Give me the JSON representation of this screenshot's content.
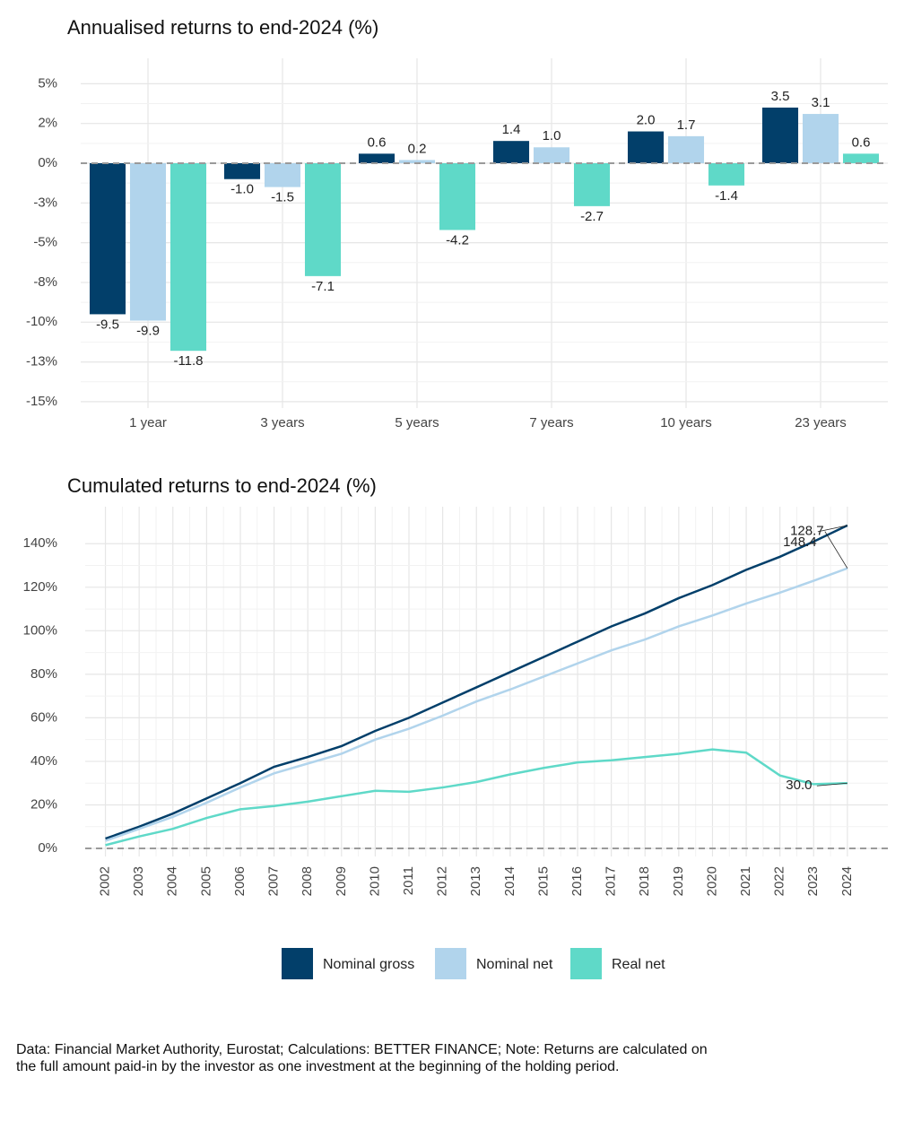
{
  "chart_data": [
    {
      "type": "bar",
      "title": "Annualised returns to end-2024 (%)",
      "categories": [
        "1 year",
        "3 years",
        "5 years",
        "7 years",
        "10 years",
        "23 years"
      ],
      "series": [
        {
          "name": "Nominal gross",
          "color": "#023f6a",
          "values": [
            -9.5,
            -1.0,
            0.6,
            1.4,
            2.0,
            3.5
          ],
          "value_labels": [
            "-9.5",
            "-1.0",
            "0.6",
            "1.4",
            "2.0",
            "3.5"
          ]
        },
        {
          "name": "Nominal net",
          "color": "#b1d4ec",
          "values": [
            -9.9,
            -1.5,
            0.2,
            1.0,
            1.7,
            3.1
          ],
          "value_labels": [
            "-9.9",
            "-1.5",
            "0.2",
            "1.0",
            "1.7",
            "3.1"
          ]
        },
        {
          "name": "Real net",
          "color": "#5fd9c8",
          "values": [
            -11.8,
            -7.1,
            -4.2,
            -2.7,
            -1.4,
            0.6
          ],
          "value_labels": [
            "-11.8",
            "-7.1",
            "-4.2",
            "-2.7",
            "-1.4",
            "0.6"
          ]
        }
      ],
      "ylim": [
        -15.4,
        6.6
      ],
      "yticks": [
        {
          "value": 5,
          "label": "5%"
        },
        {
          "value": 2.5,
          "label": "2%"
        },
        {
          "value": 0,
          "label": "0%"
        },
        {
          "value": -2.5,
          "label": "-3%"
        },
        {
          "value": -5,
          "label": "-5%"
        },
        {
          "value": -7.5,
          "label": "-8%"
        },
        {
          "value": -10,
          "label": "-10%"
        },
        {
          "value": -12.5,
          "label": "-13%"
        },
        {
          "value": -15,
          "label": "-15%"
        }
      ],
      "grid": true
    },
    {
      "type": "line",
      "title": "Cumulated returns to end-2024 (%)",
      "x": [
        2002,
        2003,
        2004,
        2005,
        2006,
        2007,
        2008,
        2009,
        2010,
        2011,
        2012,
        2013,
        2014,
        2015,
        2016,
        2017,
        2018,
        2019,
        2020,
        2021,
        2022,
        2023,
        2024
      ],
      "series": [
        {
          "name": "Nominal gross",
          "color": "#023f6a",
          "values": [
            4.5,
            10,
            16,
            23,
            30,
            37.5,
            42,
            47,
            54,
            60,
            67,
            74,
            81,
            88,
            95,
            102,
            108,
            115,
            121,
            128,
            134,
            141,
            148.4
          ]
        },
        {
          "name": "Nominal net",
          "color": "#b1d4ec",
          "values": [
            3.5,
            9,
            14.5,
            21,
            28,
            34.5,
            39,
            43.5,
            50,
            55,
            61,
            67.5,
            73,
            79,
            85,
            91,
            96,
            102,
            107,
            112.5,
            117.5,
            123,
            128.7
          ]
        },
        {
          "name": "Real net",
          "color": "#5fd9c8",
          "values": [
            1.5,
            5.5,
            9,
            14,
            18,
            19.5,
            21.5,
            24,
            26.5,
            26,
            28,
            30.5,
            34,
            37,
            39.5,
            40.5,
            42,
            43.5,
            45.5,
            44,
            33.5,
            29.5,
            30.0
          ],
          "value_labels": [
            null,
            null,
            null,
            null,
            null,
            null,
            null,
            null,
            null,
            null,
            null,
            null,
            null,
            null,
            null,
            null,
            null,
            null,
            null,
            null,
            null,
            null,
            "30.0"
          ]
        }
      ],
      "xlim": [
        2001.4,
        2025.2
      ],
      "xticks": [
        2002,
        2003,
        2004,
        2005,
        2006,
        2007,
        2008,
        2009,
        2010,
        2011,
        2012,
        2013,
        2014,
        2015,
        2016,
        2017,
        2018,
        2019,
        2020,
        2021,
        2022,
        2023,
        2024
      ],
      "ylim": [
        -3.7,
        157
      ],
      "yticks": [
        {
          "value": 0,
          "label": "0%"
        },
        {
          "value": 20,
          "label": "20%"
        },
        {
          "value": 40,
          "label": "40%"
        },
        {
          "value": 60,
          "label": "60%"
        },
        {
          "value": 80,
          "label": "80%"
        },
        {
          "value": 100,
          "label": "100%"
        },
        {
          "value": 120,
          "label": "120%"
        },
        {
          "value": 140,
          "label": "140%"
        }
      ],
      "grid": true
    }
  ],
  "note": "Data: Financial Market Authority, Eurostat; Calculations: BETTER FINANCE; Note: Returns are calculated on the full amount paid-in by the investor as one investment at the beginning of the holding period."
}
